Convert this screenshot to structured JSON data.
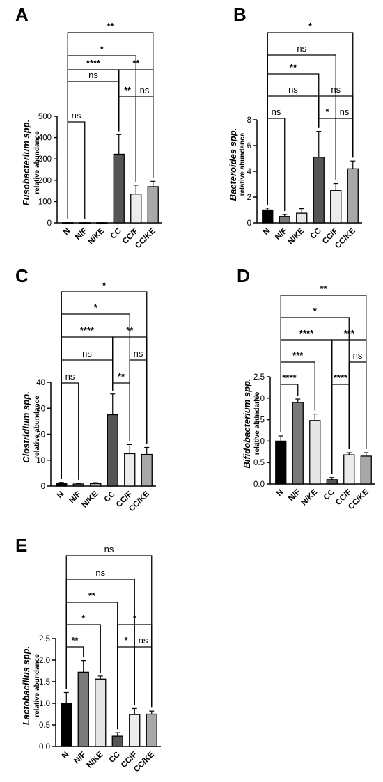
{
  "chart_data": [
    {
      "panel": "A",
      "type": "bar",
      "categories": [
        "N",
        "N/F",
        "N/KE",
        "CC",
        "CC/F",
        "CC/KE"
      ],
      "values": [
        0.5,
        0.5,
        0.5,
        322,
        135,
        170
      ],
      "errors": [
        0.5,
        0.5,
        0.5,
        92,
        42,
        25
      ],
      "bar_colors": [
        "#000000",
        "#7a7a7a",
        "#e6e6e6",
        "#555555",
        "#ececec",
        "#a8a8a8"
      ],
      "ylabel": "Fusobacterium spp.",
      "ylabel2": "relative abundance",
      "ylim": [
        0,
        500
      ],
      "yticks": [
        0,
        100,
        200,
        300,
        400,
        500
      ],
      "yticklabels": [
        "0",
        "100",
        "200",
        "300",
        "400",
        "500"
      ],
      "comparisons": [
        {
          "from": "N",
          "to": "N/F",
          "label": "ns"
        },
        {
          "from": "CC",
          "to": "CC/F",
          "label": "**"
        },
        {
          "from": "N",
          "to": "CC",
          "label": "ns"
        },
        {
          "from": "CC/F",
          "to": "CC/KE",
          "label": "ns"
        },
        {
          "from": "N",
          "to": "CC",
          "label": "****"
        },
        {
          "from": "CC",
          "to": "CC/KE",
          "label": "**"
        },
        {
          "from": "N",
          "to": "CC/F",
          "label": "*"
        },
        {
          "from": "N",
          "to": "CC/KE",
          "label": "**"
        }
      ]
    },
    {
      "panel": "B",
      "type": "bar",
      "categories": [
        "N",
        "N/F",
        "N/KE",
        "CC",
        "CC/F",
        "CC/KE"
      ],
      "values": [
        1.0,
        0.5,
        0.75,
        5.1,
        2.5,
        4.2
      ],
      "errors": [
        0.15,
        0.15,
        0.35,
        2.0,
        0.55,
        0.6
      ],
      "bar_colors": [
        "#000000",
        "#7a7a7a",
        "#e6e6e6",
        "#555555",
        "#ececec",
        "#a8a8a8"
      ],
      "ylabel": "Bacteroides spp.",
      "ylabel2": "relative abundance",
      "ylim": [
        0,
        8
      ],
      "yticks": [
        0,
        2,
        4,
        6,
        8
      ],
      "yticklabels": [
        "0",
        "2",
        "4",
        "6",
        "8"
      ],
      "comparisons": [
        {
          "from": "N",
          "to": "N/F",
          "label": "ns"
        },
        {
          "from": "CC",
          "to": "CC/F",
          "label": "*"
        },
        {
          "from": "CC/F",
          "to": "CC/KE",
          "label": "ns"
        },
        {
          "from": "N",
          "to": "CC",
          "label": "ns"
        },
        {
          "from": "CC",
          "to": "CC/KE",
          "label": "ns"
        },
        {
          "from": "N",
          "to": "CC",
          "label": "**"
        },
        {
          "from": "N",
          "to": "CC/F",
          "label": "ns"
        },
        {
          "from": "N",
          "to": "CC/KE",
          "label": "*"
        }
      ]
    },
    {
      "panel": "C",
      "type": "bar",
      "categories": [
        "N",
        "N/F",
        "N/KE",
        "CC",
        "CC/F",
        "CC/KE"
      ],
      "values": [
        1.0,
        0.8,
        0.9,
        27.5,
        12.5,
        12.2
      ],
      "errors": [
        0.4,
        0.3,
        0.4,
        8.0,
        3.5,
        2.7
      ],
      "bar_colors": [
        "#000000",
        "#7a7a7a",
        "#e6e6e6",
        "#555555",
        "#ececec",
        "#a8a8a8"
      ],
      "ylabel": "Clostridium spp.",
      "ylabel2": "relative abundance",
      "ylim": [
        0,
        40
      ],
      "yticks": [
        0,
        10,
        20,
        30,
        40
      ],
      "yticklabels": [
        "0",
        "10",
        "20",
        "30",
        "40"
      ],
      "comparisons": [
        {
          "from": "N",
          "to": "N/F",
          "label": "ns"
        },
        {
          "from": "CC",
          "to": "CC/F",
          "label": "**"
        },
        {
          "from": "N",
          "to": "CC",
          "label": "ns"
        },
        {
          "from": "CC/F",
          "to": "CC/KE",
          "label": "ns"
        },
        {
          "from": "N",
          "to": "CC",
          "label": "****"
        },
        {
          "from": "CC",
          "to": "CC/KE",
          "label": "**"
        },
        {
          "from": "N",
          "to": "CC/F",
          "label": "*"
        },
        {
          "from": "N",
          "to": "CC/KE",
          "label": "*"
        }
      ]
    },
    {
      "panel": "D",
      "type": "bar",
      "categories": [
        "N",
        "N/F",
        "N/KE",
        "CC",
        "CC/F",
        "CC/KE"
      ],
      "values": [
        1.0,
        1.9,
        1.48,
        0.1,
        0.68,
        0.65
      ],
      "errors": [
        0.12,
        0.08,
        0.15,
        0.05,
        0.05,
        0.08
      ],
      "bar_colors": [
        "#000000",
        "#7a7a7a",
        "#e6e6e6",
        "#555555",
        "#ececec",
        "#a8a8a8"
      ],
      "ylabel": "Bifidobacterium spp.",
      "ylabel2": "relative abundance",
      "ylim": [
        0,
        2.5
      ],
      "yticks": [
        0,
        0.5,
        1.0,
        1.5,
        2.0,
        2.5
      ],
      "yticklabels": [
        "0.0",
        "0.5",
        "1.0",
        "1.5",
        "2.0",
        "2.5"
      ],
      "comparisons": [
        {
          "from": "N",
          "to": "N/F",
          "label": "****"
        },
        {
          "from": "CC",
          "to": "CC/F",
          "label": "****"
        },
        {
          "from": "N",
          "to": "N/KE",
          "label": "***"
        },
        {
          "from": "CC/F",
          "to": "CC/KE",
          "label": "ns"
        },
        {
          "from": "N",
          "to": "CC",
          "label": "****"
        },
        {
          "from": "CC",
          "to": "CC/KE",
          "label": "***"
        },
        {
          "from": "N",
          "to": "CC/F",
          "label": "*"
        },
        {
          "from": "N",
          "to": "CC/KE",
          "label": "**"
        }
      ]
    },
    {
      "panel": "E",
      "type": "bar",
      "categories": [
        "N",
        "N/F",
        "N/KE",
        "CC",
        "CC/F",
        "CC/KE"
      ],
      "values": [
        1.0,
        1.72,
        1.56,
        0.24,
        0.74,
        0.75
      ],
      "errors": [
        0.25,
        0.27,
        0.07,
        0.08,
        0.14,
        0.07
      ],
      "bar_colors": [
        "#000000",
        "#7a7a7a",
        "#e6e6e6",
        "#555555",
        "#ececec",
        "#a8a8a8"
      ],
      "ylabel": "Lactobacillus spp.",
      "ylabel2": "relative abundance",
      "ylim": [
        0,
        2.5
      ],
      "yticks": [
        0,
        0.5,
        1.0,
        1.5,
        2.0,
        2.5
      ],
      "yticklabels": [
        "0.0",
        "0.5",
        "1.0",
        "1.5",
        "2.0",
        "2.5"
      ],
      "comparisons": [
        {
          "from": "N",
          "to": "N/F",
          "label": "**"
        },
        {
          "from": "CC",
          "to": "CC/F",
          "label": "*"
        },
        {
          "from": "CC/F",
          "to": "CC/KE",
          "label": "ns"
        },
        {
          "from": "N",
          "to": "N/KE",
          "label": "*"
        },
        {
          "from": "CC",
          "to": "CC/KE",
          "label": "*"
        },
        {
          "from": "N",
          "to": "CC",
          "label": "**"
        },
        {
          "from": "N",
          "to": "CC/F",
          "label": "ns"
        },
        {
          "from": "N",
          "to": "CC/KE",
          "label": "ns"
        }
      ]
    }
  ]
}
